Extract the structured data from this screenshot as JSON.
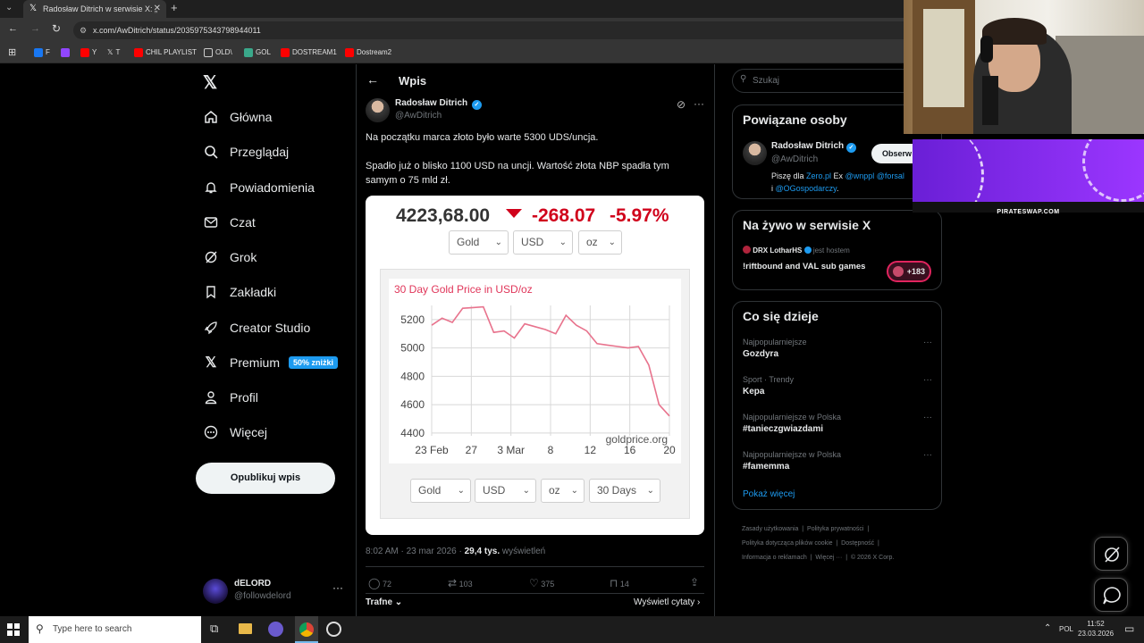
{
  "browser": {
    "tab_title": "Radosław Ditrich w serwisie X: „",
    "url": "x.com/AwDitrich/status/2035975343798944011",
    "bookmarks": [
      "F",
      "Y",
      "T",
      "CHIL PLAYLIST",
      "OLD\\",
      "GOL",
      "DOSTREAM1",
      "Dostream2"
    ]
  },
  "sidebar": {
    "items": [
      {
        "label": "Główna",
        "icon": "home-icon"
      },
      {
        "label": "Przeglądaj",
        "icon": "search-icon"
      },
      {
        "label": "Powiadomienia",
        "icon": "bell-icon"
      },
      {
        "label": "Czat",
        "icon": "mail-icon"
      },
      {
        "label": "Grok",
        "icon": "grok-icon"
      },
      {
        "label": "Zakładki",
        "icon": "bookmark-icon"
      },
      {
        "label": "Creator Studio",
        "icon": "rocket-icon"
      },
      {
        "label": "Premium",
        "icon": "x-icon"
      },
      {
        "label": "Profil",
        "icon": "person-icon"
      },
      {
        "label": "Więcej",
        "icon": "more-circle-icon"
      }
    ],
    "premium_badge": "50% zniżki",
    "post_button": "Opublikuj wpis",
    "account_name": "dELORD",
    "account_handle": "@followdelord"
  },
  "post": {
    "header": "Wpis",
    "author_name": "Radosław Ditrich",
    "author_handle": "@AwDitrich",
    "text1": "Na początku marca złoto było warte 5300 UDS/uncja.",
    "text2": "Spadło już o blisko 1100 USD na uncji. Wartość złota NBP spadła tym samym o 75 mld zł.",
    "meta_time": "8:02 AM · 23 mar 2026 · ",
    "views_count": "29,4 tys.",
    "views_label": " wyświetleń",
    "replies": "72",
    "reposts": "103",
    "likes": "375",
    "bookmarks": "14",
    "sort_label": "Trafne",
    "quotes_label": "Wyświetl cytaty"
  },
  "widget": {
    "price": "4223,68.00",
    "change": "-268.07",
    "change_pct": "-5.97%",
    "selects_top": [
      "Gold",
      "USD",
      "oz"
    ],
    "selects_bottom": [
      "Gold",
      "USD",
      "oz",
      "30 Days"
    ],
    "colors": {
      "down": "#d0021b",
      "line": "#e8738d",
      "title": "#e0365a"
    }
  },
  "chart_data": {
    "type": "line",
    "title": "30 Day Gold Price in USD/oz",
    "watermark": "goldprice.org",
    "xlabel": "",
    "ylabel": "",
    "x_ticks": [
      "23 Feb",
      "27",
      "3 Mar",
      "8",
      "12",
      "16",
      "20"
    ],
    "y_ticks": [
      4400,
      4600,
      4800,
      5000,
      5200
    ],
    "ylim": [
      4380,
      5300
    ],
    "grid": true,
    "series": [
      {
        "values": [
          5160,
          5210,
          5180,
          5280,
          5285,
          5290,
          5110,
          5120,
          5070,
          5170,
          5150,
          5130,
          5100,
          5230,
          5160,
          5120,
          5030,
          5020,
          5010,
          5000,
          5010,
          4880,
          4600,
          4520
        ]
      }
    ]
  },
  "right": {
    "search_placeholder": "Szukaj",
    "related_title": "Powiązane osoby",
    "related_name": "Radosław Ditrich",
    "related_handle": "@AwDitrich",
    "follow_label": "Obserw",
    "bio_prefix": "Piszę dla ",
    "bio_link1": "Zero.pl",
    "bio_mid": " Ex ",
    "bio_link2": "@wnppl @forsal",
    "bio_i": "i ",
    "bio_link3": "@OGospodarczy",
    "bio_suffix": ".",
    "live_title": "Na żywo w serwisie X",
    "live_host": "DRX LotharHS",
    "live_host_suffix": "jest hostem",
    "live_desc": "!riftbound and VAL sub games",
    "live_count": "+183",
    "trends_title": "Co się dzieje",
    "trends": [
      {
        "meta": "Najpopularniejsze",
        "name": "Gozdyra"
      },
      {
        "meta": "Sport · Trendy",
        "name": "Kepa"
      },
      {
        "meta": "Najpopularniejsze w Polska",
        "name": "#tanieczgwiazdami"
      },
      {
        "meta": "Najpopularniejsze w Polska",
        "name": "#famemma"
      }
    ],
    "show_more": "Pokaż więcej",
    "footer1": [
      "Zasady użytkowania",
      "Polityka prywatności"
    ],
    "footer2": [
      "Polityka dotycząca plików cookie",
      "Dostępność"
    ],
    "footer3": [
      "Informacja o reklamach",
      "Więcej ···",
      "© 2026 X Corp."
    ]
  },
  "overlay": {
    "banner_text": "PIRATESWAP.COM"
  },
  "taskbar": {
    "search_placeholder": "Type here to search",
    "lang": "POL",
    "time": "11:52",
    "date": "23.03.2026"
  }
}
